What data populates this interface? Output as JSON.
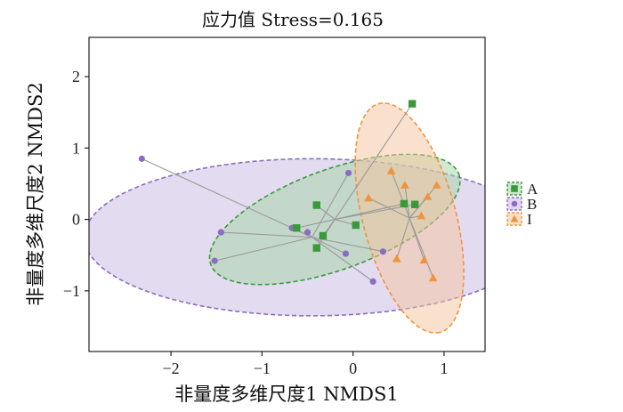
{
  "chart_data": {
    "type": "scatter",
    "title": "应力值  Stress=0.165",
    "xlabel": "非量度多维尺度1 NMDS1",
    "ylabel": "非量度多维尺度2 NMDS2",
    "xlim": [
      -2.9,
      1.45
    ],
    "ylim": [
      -1.85,
      2.55
    ],
    "x_ticks": [
      -2,
      -1,
      0,
      1
    ],
    "x_tick_labels": [
      "−2",
      "−1",
      "0",
      "1"
    ],
    "y_ticks": [
      -1,
      0,
      1,
      2
    ],
    "y_tick_labels": [
      "−1",
      "0",
      "1",
      "2"
    ],
    "grid": false,
    "legend_position": "right",
    "series": [
      {
        "name": "B",
        "color": "#8b6ebf",
        "fill": "#c8b8e2",
        "marker": "circle",
        "centroid": [
          -0.45,
          -0.25
        ],
        "ellipse": {
          "rx": 2.5,
          "ry": 1.1,
          "angle_deg": 0.0
        },
        "points": [
          {
            "x": -2.32,
            "y": 0.85
          },
          {
            "x": -1.45,
            "y": -0.18
          },
          {
            "x": -1.52,
            "y": -0.58
          },
          {
            "x": -0.67,
            "y": -0.12
          },
          {
            "x": -0.5,
            "y": -0.18
          },
          {
            "x": -0.08,
            "y": -0.48
          },
          {
            "x": 0.33,
            "y": -0.45
          },
          {
            "x": 0.22,
            "y": -0.87
          },
          {
            "x": -0.05,
            "y": 0.65
          }
        ]
      },
      {
        "name": "A",
        "color": "#3a9a3a",
        "fill": "#a3d4a3",
        "marker": "square",
        "centroid": [
          -0.2,
          0.0
        ],
        "ellipse": {
          "rx": 1.45,
          "ry": 0.7,
          "angle_deg": 20.0
        },
        "points": [
          {
            "x": -0.62,
            "y": -0.12
          },
          {
            "x": -0.4,
            "y": 0.2
          },
          {
            "x": -0.33,
            "y": -0.23
          },
          {
            "x": -0.4,
            "y": -0.4
          },
          {
            "x": 0.03,
            "y": -0.08
          },
          {
            "x": 0.56,
            "y": 0.22
          },
          {
            "x": 0.68,
            "y": 0.21
          },
          {
            "x": 0.65,
            "y": 1.62
          }
        ]
      },
      {
        "name": "I",
        "color": "#f0943c",
        "fill": "#f5c49c",
        "marker": "triangle",
        "centroid": [
          0.62,
          0.02
        ],
        "ellipse": {
          "rx": 1.3,
          "ry": 0.65,
          "angle_deg": -75.0
        },
        "points": [
          {
            "x": 0.42,
            "y": 0.68
          },
          {
            "x": 0.57,
            "y": 0.48
          },
          {
            "x": 0.92,
            "y": 0.48
          },
          {
            "x": 0.82,
            "y": 0.32
          },
          {
            "x": 0.17,
            "y": 0.3
          },
          {
            "x": 0.75,
            "y": 0.05
          },
          {
            "x": 0.48,
            "y": -0.55
          },
          {
            "x": 0.78,
            "y": -0.57
          },
          {
            "x": 0.88,
            "y": -0.82
          }
        ]
      }
    ],
    "legend_order": [
      "A",
      "B",
      "I"
    ]
  },
  "colors": {
    "axis": "#222222",
    "spoke": "#9a9a9a"
  }
}
